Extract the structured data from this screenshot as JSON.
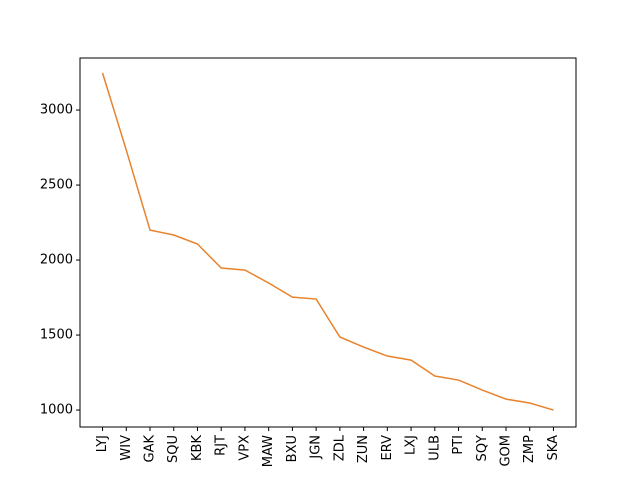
{
  "chart_data": {
    "type": "line",
    "categories": [
      "LYJ",
      "WIV",
      "GAK",
      "SQU",
      "KBK",
      "RJT",
      "VPX",
      "MAW",
      "BXU",
      "JGN",
      "ZDL",
      "ZUN",
      "ERV",
      "LXJ",
      "ULB",
      "PTI",
      "SQY",
      "GOM",
      "ZMP",
      "SKA"
    ],
    "values": [
      3247,
      2733,
      2200,
      2167,
      2107,
      1947,
      1933,
      1847,
      1753,
      1740,
      1487,
      1420,
      1360,
      1333,
      1227,
      1200,
      1133,
      1073,
      1047,
      1000
    ],
    "color": "#e8832d",
    "ylim": [
      887,
      3347
    ],
    "yticks": [
      1000,
      1500,
      2000,
      2500,
      3000
    ]
  }
}
